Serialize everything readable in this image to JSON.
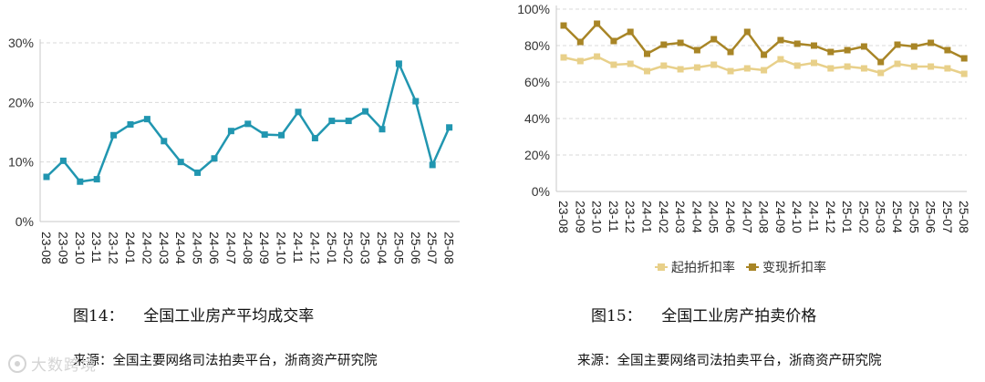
{
  "chart_data": [
    {
      "type": "line",
      "categories": [
        "23-08",
        "23-09",
        "23-10",
        "23-11",
        "23-12",
        "24-01",
        "24-02",
        "24-03",
        "24-04",
        "24-05",
        "24-06",
        "24-07",
        "24-08",
        "24-09",
        "24-10",
        "24-11",
        "24-12",
        "25-01",
        "25-02",
        "25-03",
        "25-04",
        "25-05",
        "25-06",
        "25-07",
        "25-08"
      ],
      "series": [
        {
          "values": [
            7.5,
            10.2,
            6.7,
            7.1,
            14.5,
            16.3,
            17.2,
            13.5,
            10.0,
            8.2,
            10.6,
            15.2,
            16.4,
            14.6,
            14.5,
            18.4,
            14.0,
            16.9,
            16.9,
            18.5,
            15.5,
            26.5,
            20.2,
            9.5,
            15.8
          ]
        }
      ],
      "yticks": [
        "0%",
        "10%",
        "20%",
        "30%"
      ],
      "ylim": [
        0,
        30
      ],
      "color": "#2196b0",
      "grid": true
    },
    {
      "type": "line",
      "categories": [
        "23-08",
        "23-09",
        "23-10",
        "23-11",
        "23-12",
        "24-01",
        "24-02",
        "24-03",
        "24-04",
        "24-05",
        "24-06",
        "24-07",
        "24-08",
        "24-09",
        "24-10",
        "24-11",
        "24-12",
        "25-01",
        "25-02",
        "25-03",
        "25-04",
        "25-05",
        "25-06",
        "25-07",
        "25-08"
      ],
      "series": [
        {
          "name": "起拍折扣率",
          "color": "#e8d08a",
          "values": [
            73.5,
            71.5,
            74.0,
            69.5,
            70.0,
            66.0,
            69.0,
            67.0,
            68.0,
            69.5,
            66.0,
            67.5,
            66.5,
            72.5,
            69.0,
            70.5,
            67.5,
            68.5,
            67.5,
            65.0,
            70.0,
            68.5,
            68.5,
            67.5,
            64.5
          ]
        },
        {
          "name": "变现折扣率",
          "color": "#a88526",
          "values": [
            91.0,
            82.0,
            92.0,
            82.5,
            87.5,
            75.5,
            80.5,
            81.5,
            77.5,
            83.5,
            76.5,
            87.5,
            75.0,
            83.0,
            81.0,
            80.0,
            76.5,
            77.5,
            79.5,
            71.0,
            80.5,
            79.5,
            81.5,
            77.5,
            73.0
          ]
        }
      ],
      "yticks": [
        "0%",
        "20%",
        "40%",
        "60%",
        "80%",
        "100%"
      ],
      "ylim": [
        0,
        100
      ],
      "legend": "bottom",
      "grid": true
    }
  ],
  "captions": {
    "fig14_number": "图14：",
    "fig14_title": "全国工业房产平均成交率",
    "fig15_number": "图15：",
    "fig15_title": "全国工业房产拍卖价格",
    "source_left": "来源：全国主要网络司法拍卖平台，浙商资产研究院",
    "source_right": "来源：全国主要网络司法拍卖平台，浙商资产研究院"
  },
  "watermark": {
    "text": "大数跨境"
  }
}
